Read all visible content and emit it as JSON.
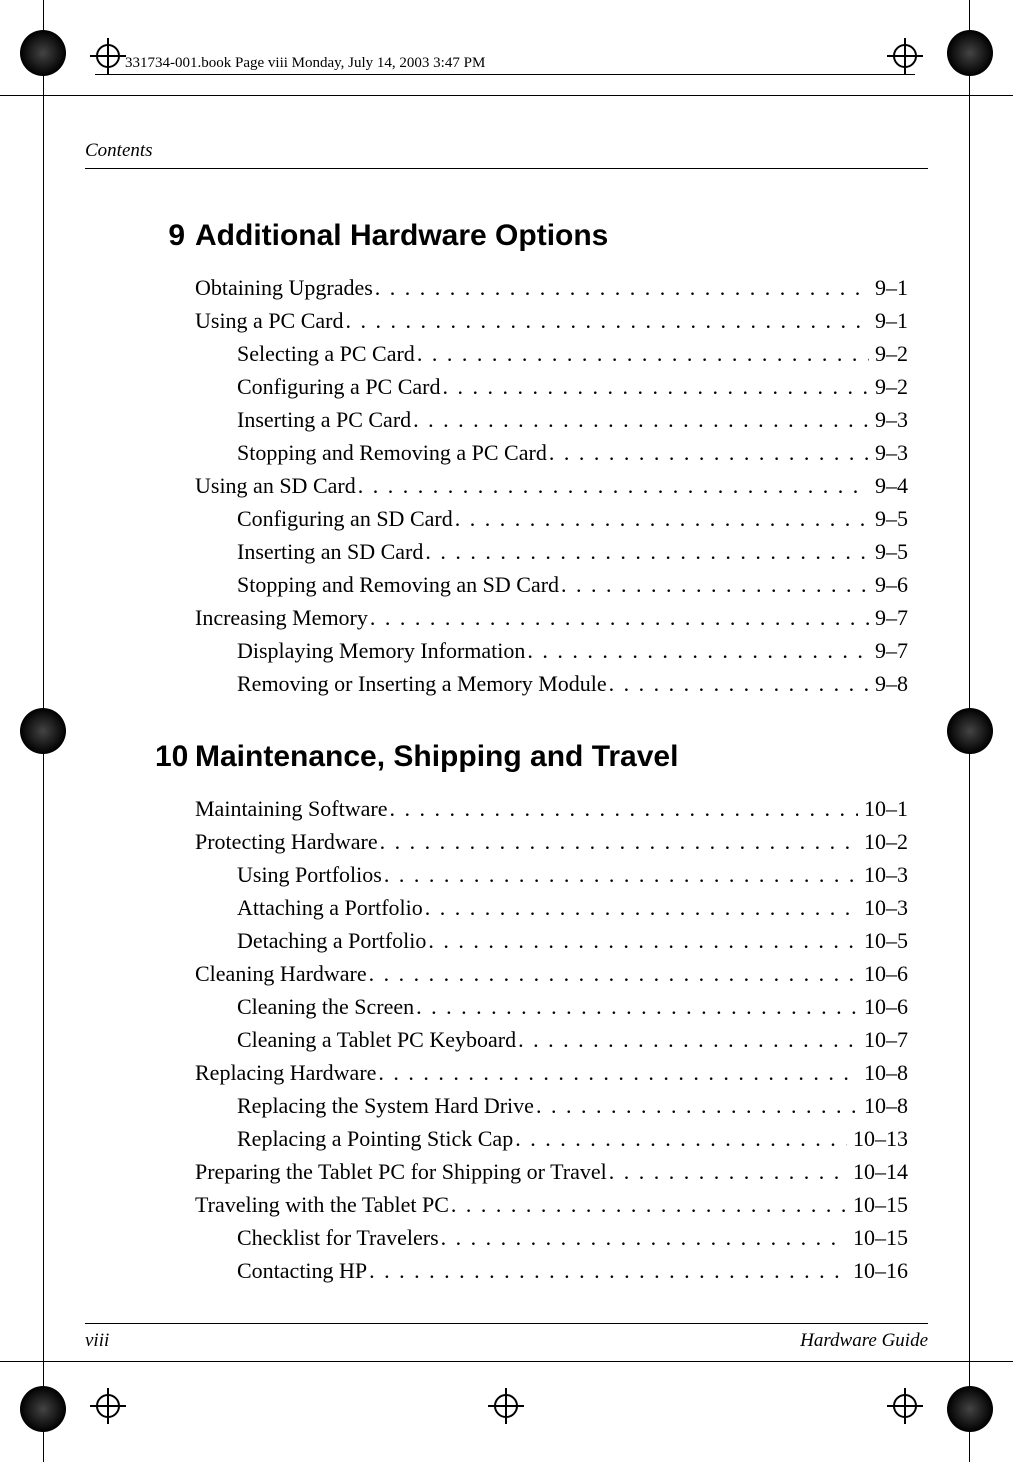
{
  "book_label": "331734-001.book  Page viii  Monday, July 14, 2003  3:47 PM",
  "running_header": "Contents",
  "footer": {
    "left": "viii",
    "right": "Hardware Guide"
  },
  "chapters": [
    {
      "number": "9",
      "title": "Additional Hardware Options",
      "entries": [
        {
          "indent": 1,
          "label": "Obtaining Upgrades",
          "page": "9–1"
        },
        {
          "indent": 1,
          "label": "Using a PC Card",
          "page": "9–1"
        },
        {
          "indent": 2,
          "label": "Selecting a PC Card",
          "page": "9–2"
        },
        {
          "indent": 2,
          "label": "Configuring a PC Card",
          "page": "9–2"
        },
        {
          "indent": 2,
          "label": "Inserting a PC Card",
          "page": "9–3"
        },
        {
          "indent": 2,
          "label": "Stopping and Removing a PC Card",
          "page": "9–3"
        },
        {
          "indent": 1,
          "label": "Using an SD Card",
          "page": "9–4"
        },
        {
          "indent": 2,
          "label": "Configuring an SD Card",
          "page": "9–5"
        },
        {
          "indent": 2,
          "label": "Inserting an SD Card",
          "page": "9–5"
        },
        {
          "indent": 2,
          "label": "Stopping and Removing an SD Card",
          "page": "9–6"
        },
        {
          "indent": 1,
          "label": "Increasing Memory",
          "page": "9–7"
        },
        {
          "indent": 2,
          "label": "Displaying Memory Information",
          "page": "9–7"
        },
        {
          "indent": 2,
          "label": "Removing or Inserting a Memory Module",
          "page": "9–8"
        }
      ]
    },
    {
      "number": "10",
      "title": "Maintenance, Shipping and Travel",
      "entries": [
        {
          "indent": 1,
          "label": "Maintaining Software",
          "page": "10–1"
        },
        {
          "indent": 1,
          "label": "Protecting Hardware",
          "page": "10–2"
        },
        {
          "indent": 2,
          "label": "Using Portfolios",
          "page": "10–3"
        },
        {
          "indent": 2,
          "label": "Attaching a Portfolio",
          "page": "10–3"
        },
        {
          "indent": 2,
          "label": "Detaching a Portfolio",
          "page": "10–5"
        },
        {
          "indent": 1,
          "label": "Cleaning Hardware",
          "page": "10–6"
        },
        {
          "indent": 2,
          "label": "Cleaning the Screen",
          "page": "10–6"
        },
        {
          "indent": 2,
          "label": "Cleaning a Tablet PC Keyboard",
          "page": "10–7"
        },
        {
          "indent": 1,
          "label": "Replacing Hardware",
          "page": "10–8"
        },
        {
          "indent": 2,
          "label": "Replacing the System Hard Drive",
          "page": "10–8"
        },
        {
          "indent": 2,
          "label": "Replacing a Pointing Stick Cap",
          "page": "10–13"
        },
        {
          "indent": 1,
          "label": "Preparing the Tablet PC for Shipping or Travel",
          "page": "10–14"
        },
        {
          "indent": 1,
          "label": "Traveling with the Tablet PC",
          "page": "10–15"
        },
        {
          "indent": 2,
          "label": "Checklist for Travelers",
          "page": "10–15"
        },
        {
          "indent": 2,
          "label": "Contacting HP",
          "page": "10–16"
        }
      ]
    }
  ]
}
